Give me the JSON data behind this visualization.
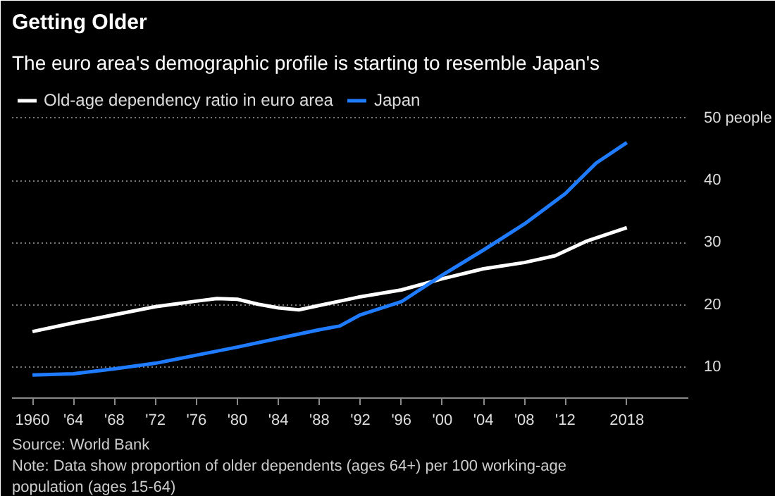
{
  "chart_data": {
    "type": "line",
    "title": "Getting Older",
    "subtitle": "The euro area's demographic profile is starting to resemble Japan's",
    "series": [
      {
        "name": "Old-age dependency ratio in euro area",
        "color": "#ffffff",
        "x": [
          1960,
          1964,
          1968,
          1972,
          1976,
          1978,
          1980,
          1982,
          1984,
          1986,
          1988,
          1990,
          1992,
          1996,
          2000,
          2004,
          2008,
          2011,
          2014,
          2018
        ],
        "values": [
          15.7,
          17.1,
          18.4,
          19.7,
          20.6,
          21.0,
          20.9,
          20.1,
          19.5,
          19.2,
          19.9,
          20.6,
          21.3,
          22.4,
          24.2,
          25.8,
          26.8,
          27.9,
          30.2,
          32.4
        ]
      },
      {
        "name": "Japan",
        "color": "#1f7bff",
        "x": [
          1960,
          1964,
          1968,
          1972,
          1976,
          1980,
          1984,
          1988,
          1990,
          1992,
          1996,
          2000,
          2004,
          2008,
          2012,
          2015,
          2018
        ],
        "values": [
          8.7,
          8.9,
          9.7,
          10.6,
          11.9,
          13.2,
          14.6,
          16.0,
          16.6,
          18.4,
          20.5,
          24.8,
          28.8,
          33.0,
          37.9,
          42.8,
          46.1
        ]
      }
    ],
    "xlim": [
      1958,
      2024
    ],
    "xticks": [
      1960,
      {
        "value": 1964,
        "label": "'64"
      },
      {
        "value": 1968,
        "label": "'68"
      },
      {
        "value": 1972,
        "label": "'72"
      },
      {
        "value": 1976,
        "label": "'76"
      },
      {
        "value": 1980,
        "label": "'80"
      },
      {
        "value": 1984,
        "label": "'84"
      },
      {
        "value": 1988,
        "label": "'88"
      },
      {
        "value": 1992,
        "label": "'92"
      },
      {
        "value": 1996,
        "label": "'96"
      },
      {
        "value": 2000,
        "label": "'00"
      },
      {
        "value": 2004,
        "label": "'04"
      },
      {
        "value": 2008,
        "label": "'08"
      },
      {
        "value": 2012,
        "label": "'12"
      },
      2018
    ],
    "ylim": [
      5,
      56
    ],
    "yticks": [
      10,
      20,
      30,
      40,
      {
        "value": 50,
        "label": "50 people"
      }
    ],
    "grid": "y",
    "legend": "top left",
    "line_style": "solid",
    "marker": "none",
    "annotations": [
      "Source: World Bank",
      "Note: Data show proportion of older dependents (ages 64+) per 100 working-age",
      "population (ages 15-64)"
    ]
  }
}
